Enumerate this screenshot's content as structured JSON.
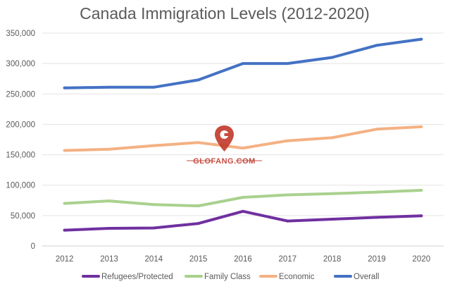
{
  "chart_data": {
    "type": "line",
    "title": "Canada Immigration Levels (2012-2020)",
    "xlabel": "",
    "ylabel": "",
    "categories": [
      "2012",
      "2013",
      "2014",
      "2015",
      "2016",
      "2017",
      "2018",
      "2019",
      "2020"
    ],
    "ylim": [
      0,
      350000
    ],
    "yticks": [
      0,
      50000,
      100000,
      150000,
      200000,
      250000,
      300000,
      350000
    ],
    "ytick_labels": [
      "0",
      "50,000",
      "100,000",
      "150,000",
      "200,000",
      "250,000",
      "300,000",
      "350,000"
    ],
    "grid": "horizontal",
    "legend_position": "bottom",
    "series": [
      {
        "name": "Refugees/Protected",
        "color": "#7030a0",
        "values": [
          26000,
          29000,
          29500,
          37000,
          57000,
          41000,
          44000,
          47000,
          49500
        ]
      },
      {
        "name": "Family Class",
        "color": "#a9d18e",
        "values": [
          70000,
          74000,
          68000,
          66000,
          80000,
          84000,
          86000,
          88500,
          91500
        ]
      },
      {
        "name": "Economic",
        "color": "#f4b183",
        "values": [
          157000,
          159000,
          165000,
          170000,
          161000,
          173000,
          178000,
          192000,
          196000
        ]
      },
      {
        "name": "Overall",
        "color": "#4472c4",
        "values": [
          260000,
          261000,
          261000,
          273000,
          300000,
          300000,
          310000,
          330000,
          340000
        ]
      }
    ]
  },
  "watermark": {
    "text": "GLOFANG.COM",
    "color": "#c0392b"
  }
}
